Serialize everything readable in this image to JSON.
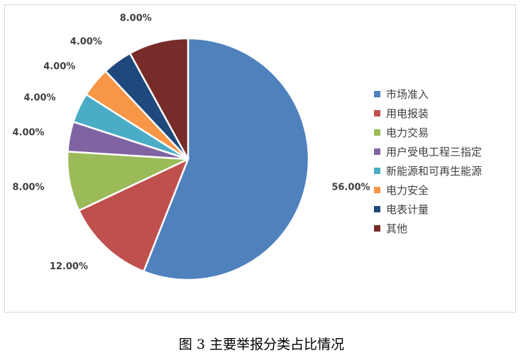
{
  "caption": "图 3 主要举报分类占比情况",
  "chart_data": {
    "type": "pie",
    "title": "",
    "legend_position": "right",
    "slices": [
      {
        "name": "市场准入",
        "value": 56.0,
        "label": "56.00%",
        "color": "#4F81BD"
      },
      {
        "name": "用电报装",
        "value": 12.0,
        "label": "12.00%",
        "color": "#C0504D"
      },
      {
        "name": "电力交易",
        "value": 8.0,
        "label": "8.00%",
        "color": "#9BBB59"
      },
      {
        "name": "用户受电工程三指定",
        "value": 4.0,
        "label": "4.00%",
        "color": "#8064A2"
      },
      {
        "name": "新能源和可再生能源",
        "value": 4.0,
        "label": "4.00%",
        "color": "#4BACC6"
      },
      {
        "name": "电力安全",
        "value": 4.0,
        "label": "4.00%",
        "color": "#F79646"
      },
      {
        "name": "电表计量",
        "value": 4.0,
        "label": "4.00%",
        "color": "#1F497D"
      },
      {
        "name": "其他",
        "value": 8.0,
        "label": "8.00%",
        "color": "#772C2A"
      }
    ]
  }
}
